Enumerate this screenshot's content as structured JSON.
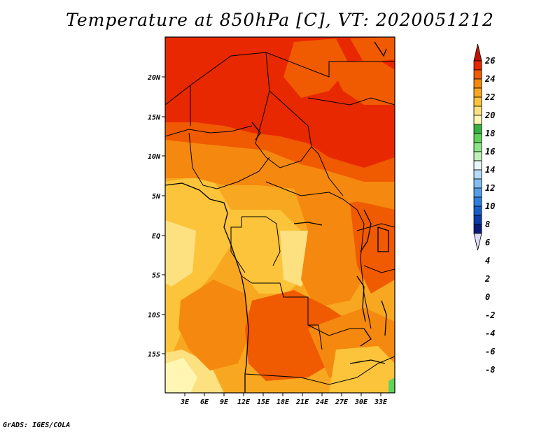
{
  "title": "Temperature at 850hPa [C], VT: 2020051212",
  "credit": "GrADS: IGES/COLA",
  "map": {
    "y_axis_labels": [
      "20N",
      "15N",
      "10N",
      "5N",
      "EQ",
      "5S",
      "10S",
      "15S"
    ],
    "x_axis_labels": [
      "3E",
      "6E",
      "9E",
      "12E",
      "15E",
      "18E",
      "21E",
      "24E",
      "27E",
      "30E",
      "33E"
    ]
  },
  "colorbar": {
    "labels": [
      "26",
      "24",
      "22",
      "20",
      "18",
      "16",
      "14",
      "12",
      "10",
      "8",
      "6",
      "4",
      "2",
      "0",
      "-2",
      "-4",
      "-6",
      "-8"
    ],
    "colors": [
      "#c01400",
      "#e82800",
      "#f05a00",
      "#f5880e",
      "#f8a820",
      "#fbc43a",
      "#fde080",
      "#fff6b4",
      "#36b040",
      "#5ed25a",
      "#8ee488",
      "#c0f0ba",
      "#e8f8f8",
      "#b4dcf8",
      "#82bef2",
      "#549ee8",
      "#2e7edc",
      "#185cc8",
      "#0c3aa8",
      "#081a78",
      "#dcdcf8"
    ]
  },
  "legend_colors": {
    "orange_deep": "#e82800",
    "orange": "#f05a00",
    "amber": "#f5880e",
    "light_amber": "#fbc43a",
    "pale_yellow": "#fde080",
    "green": "#5ed25a"
  }
}
